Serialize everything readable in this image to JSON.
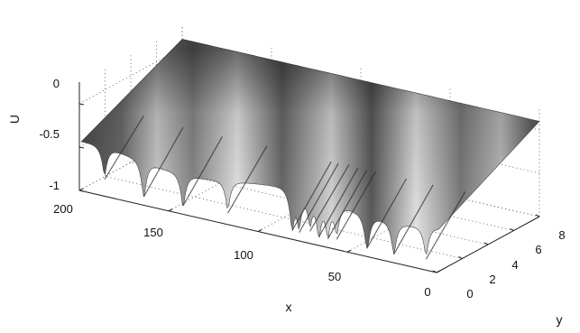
{
  "chart_data": {
    "type": "surface",
    "title": "",
    "xlabel": "x",
    "ylabel": "y",
    "zlabel": "U",
    "xlim": [
      0,
      200
    ],
    "ylim": [
      0,
      8
    ],
    "zlim": [
      -1,
      0.25
    ],
    "xticks": [
      "0",
      "50",
      "100",
      "150",
      "200"
    ],
    "yticks": [
      "0",
      "2",
      "4",
      "6",
      "8"
    ],
    "zticks": [
      "-1",
      "-0.5",
      "0"
    ],
    "grid": true,
    "colormap": "gray",
    "description_of_surface": {
      "back_edge_U_at_y8": 0.1,
      "front_edge_U_range_at_y0": [
        -0.95,
        -0.5
      ],
      "cusp_x_positions_at_front": [
        7,
        25,
        40,
        57,
        62,
        67,
        72,
        78,
        82,
        118,
        143,
        165,
        187
      ]
    }
  }
}
